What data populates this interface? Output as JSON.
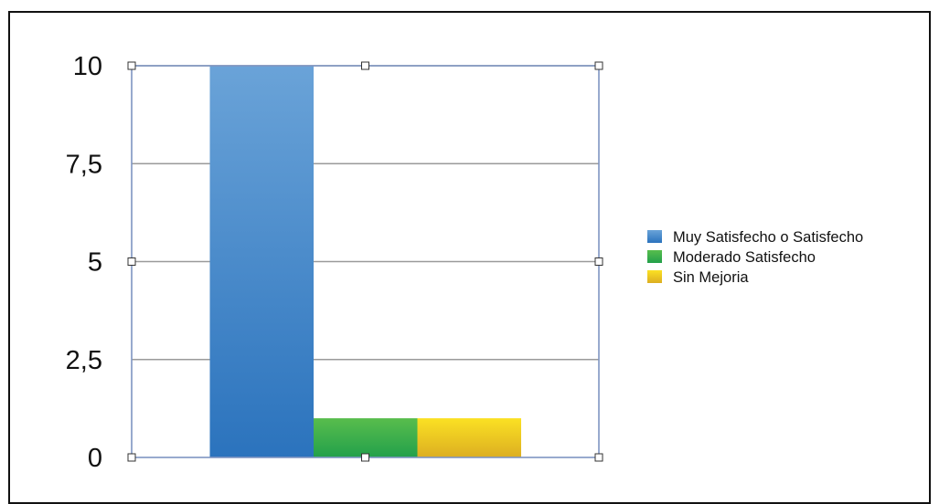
{
  "chart_data": {
    "type": "bar",
    "categories": [
      ""
    ],
    "series": [
      {
        "name": "Muy Satisfecho o Satisfecho",
        "values": [
          10
        ],
        "color": "#2b73bd",
        "color_light": "#6aa3d8"
      },
      {
        "name": "Moderado Satisfecho",
        "values": [
          1
        ],
        "color": "#23a04b",
        "color_light": "#58bd4c"
      },
      {
        "name": "Sin Mejoria",
        "values": [
          1
        ],
        "color": "#dcae22",
        "color_light": "#fbe123"
      }
    ],
    "ylim": [
      0,
      10
    ],
    "yticks": [
      0,
      2.5,
      5,
      7.5,
      10
    ],
    "ytick_labels": [
      "0",
      "2,5",
      "5",
      "7,5",
      "10"
    ],
    "grid": true,
    "legend": "right",
    "selected": true
  }
}
